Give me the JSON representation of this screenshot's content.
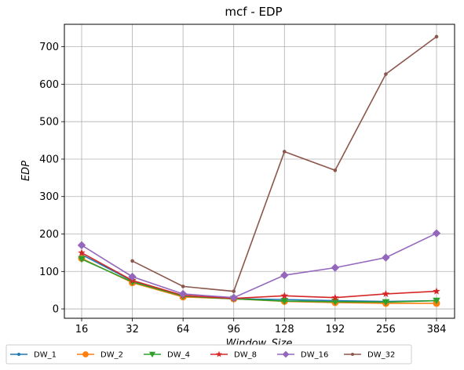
{
  "chart_data": {
    "type": "line",
    "title": "mcf - EDP",
    "xlabel": "Window_Size",
    "ylabel": "EDP",
    "categories": [
      "16",
      "32",
      "64",
      "96",
      "128",
      "192",
      "256",
      "384"
    ],
    "ylim": [
      -25,
      760
    ],
    "yticks": [
      0,
      100,
      200,
      300,
      400,
      500,
      600,
      700
    ],
    "grid": true,
    "legend_placement": "bottom, outside, single row",
    "series": [
      {
        "name": "DW_1",
        "color": "#1f77b4",
        "marker": "point",
        "values": [
          145,
          75,
          35,
          27,
          25,
          22,
          20,
          22
        ]
      },
      {
        "name": "DW_2",
        "color": "#ff7f0e",
        "marker": "circle",
        "values": [
          135,
          70,
          32,
          27,
          20,
          17,
          15,
          15
        ]
      },
      {
        "name": "DW_4",
        "color": "#2ca02c",
        "marker": "triangle-down",
        "values": [
          133,
          72,
          34,
          27,
          21,
          19,
          18,
          22
        ]
      },
      {
        "name": "DW_8",
        "color": "#d62728",
        "marker": "star",
        "values": [
          150,
          76,
          36,
          28,
          35,
          30,
          40,
          47
        ]
      },
      {
        "name": "DW_16",
        "color": "#9467bd",
        "marker": "diamond",
        "values": [
          170,
          86,
          40,
          30,
          90,
          110,
          137,
          202
        ]
      },
      {
        "name": "DW_32",
        "color": "#8c564b",
        "marker": "point",
        "values": [
          null,
          128,
          60,
          47,
          420,
          370,
          627,
          727
        ]
      }
    ]
  }
}
